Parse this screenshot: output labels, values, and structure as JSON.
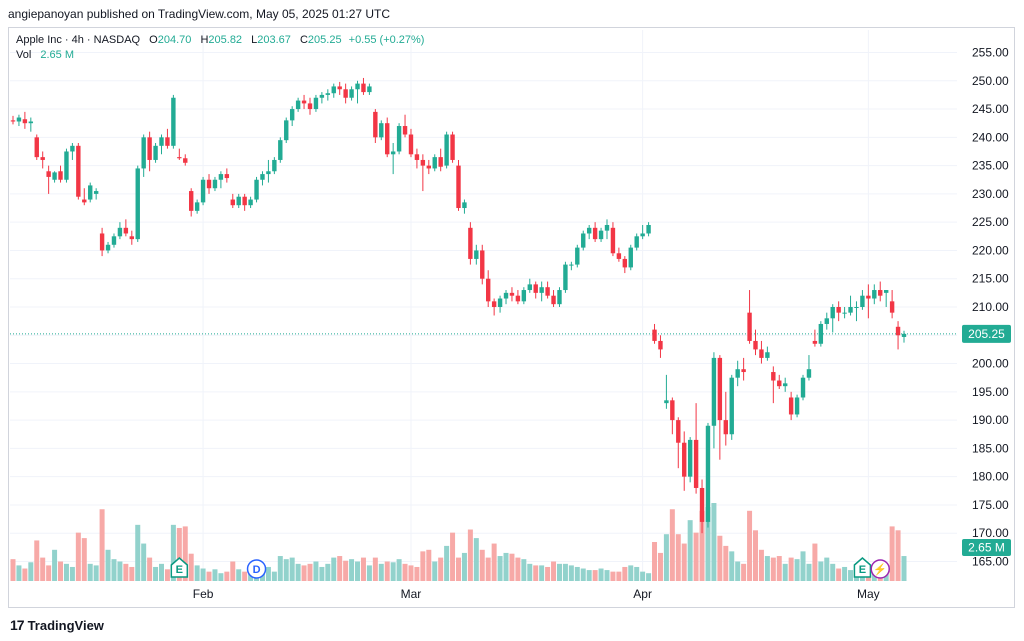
{
  "header": {
    "text": "angiepanoyan published on TradingView.com, May 05, 2025 01:27 UTC"
  },
  "legend": {
    "symbol": "Apple Inc · 4h · NASDAQ",
    "o_label": "O",
    "o_value": "204.70",
    "h_label": "H",
    "h_value": "205.82",
    "l_label": "L",
    "l_value": "203.67",
    "c_label": "C",
    "c_value": "205.25",
    "change": "+0.55 (+0.27%)",
    "vol_label": "Vol",
    "vol_value": "2.65 M"
  },
  "footer": {
    "brand": "TradingView",
    "logo": "17"
  },
  "colors": {
    "up": "#22ab94",
    "down": "#f23645",
    "up_vol": "#92d2cc",
    "down_vol": "#f7a9a7",
    "grid": "#f0f3fa",
    "price_line": "#22ab94"
  },
  "chart_data": {
    "type": "candlestick",
    "title": "Apple Inc · 4h · NASDAQ",
    "xlabel": "",
    "ylabel": "",
    "ylim": [
      163,
      258
    ],
    "y_ticks": [
      "255.00",
      "250.00",
      "245.00",
      "240.00",
      "235.00",
      "230.00",
      "225.00",
      "220.00",
      "215.00",
      "210.00",
      "205.00",
      "200.00",
      "195.00",
      "190.00",
      "185.00",
      "180.00",
      "175.00",
      "170.00",
      "165.00"
    ],
    "x_ticks": [
      {
        "label": "Feb",
        "index": 32
      },
      {
        "label": "Mar",
        "index": 67
      },
      {
        "label": "Apr",
        "index": 106
      },
      {
        "label": "May",
        "index": 144
      }
    ],
    "last_price": 205.25,
    "last_price_label": "205.25",
    "last_volume_label": "2.65 M",
    "volume_scale_max": 100,
    "events": [
      {
        "label": "E",
        "kind": "earnings",
        "index": 28
      },
      {
        "label": "D",
        "kind": "dividend",
        "index": 41
      },
      {
        "label": "E",
        "kind": "earnings",
        "index": 143
      },
      {
        "label": "⚡",
        "kind": "split",
        "index": 146
      }
    ],
    "candles": [
      [
        243.0,
        243.8,
        242.3,
        242.8,
        28
      ],
      [
        242.8,
        244.0,
        242.0,
        243.5,
        20
      ],
      [
        243.2,
        244.5,
        241.5,
        242.5,
        16
      ],
      [
        242.5,
        243.5,
        241.0,
        242.8,
        24
      ],
      [
        240.0,
        240.5,
        236.0,
        236.5,
        52
      ],
      [
        236.5,
        237.5,
        234.5,
        236.0,
        30
      ],
      [
        234.0,
        235.0,
        230.0,
        233.0,
        20
      ],
      [
        232.5,
        234.0,
        232.0,
        233.8,
        40
      ],
      [
        234.0,
        235.0,
        232.0,
        232.5,
        25
      ],
      [
        232.5,
        238.0,
        232.0,
        237.5,
        22
      ],
      [
        237.5,
        239.0,
        236.0,
        238.5,
        18
      ],
      [
        238.5,
        239.0,
        229.0,
        229.5,
        62
      ],
      [
        229.0,
        231.0,
        228.0,
        228.5,
        55
      ],
      [
        229.0,
        232.0,
        228.5,
        231.5,
        22
      ],
      [
        230.0,
        231.0,
        229.0,
        230.5,
        20
      ],
      [
        223.0,
        224.0,
        219.0,
        220.0,
        92
      ],
      [
        220.0,
        221.5,
        219.5,
        221.0,
        40
      ],
      [
        221.0,
        223.0,
        220.5,
        222.5,
        28
      ],
      [
        222.5,
        225.0,
        222.0,
        224.0,
        25
      ],
      [
        224.0,
        225.5,
        222.5,
        223.0,
        22
      ],
      [
        222.5,
        223.5,
        221.0,
        222.0,
        18
      ],
      [
        222.0,
        235.0,
        221.5,
        234.5,
        72
      ],
      [
        234.5,
        240.5,
        233.0,
        240.0,
        48
      ],
      [
        240.0,
        241.0,
        234.0,
        236.0,
        30
      ],
      [
        236.0,
        239.0,
        235.5,
        238.5,
        18
      ],
      [
        238.5,
        240.5,
        237.0,
        240.0,
        22
      ],
      [
        240.0,
        241.5,
        238.0,
        238.5,
        15
      ],
      [
        238.5,
        247.5,
        238.0,
        247.0,
        72
      ],
      [
        236.5,
        238.0,
        236.0,
        236.3,
        68
      ],
      [
        236.3,
        237.0,
        235.0,
        235.5,
        70
      ],
      [
        230.5,
        231.0,
        226.0,
        227.0,
        35
      ],
      [
        227.0,
        229.0,
        226.5,
        228.5,
        20
      ],
      [
        228.5,
        233.0,
        228.0,
        232.5,
        16
      ],
      [
        232.5,
        233.5,
        230.0,
        231.0,
        12
      ],
      [
        231.0,
        233.0,
        230.5,
        232.5,
        15
      ],
      [
        232.5,
        234.0,
        231.0,
        233.5,
        10
      ],
      [
        233.5,
        234.5,
        232.0,
        232.8,
        12
      ],
      [
        229.0,
        230.0,
        227.5,
        228.0,
        25
      ],
      [
        228.0,
        230.0,
        227.5,
        229.5,
        15
      ],
      [
        229.5,
        230.0,
        227.0,
        228.0,
        12
      ],
      [
        228.0,
        229.5,
        227.5,
        229.0,
        10
      ],
      [
        229.0,
        233.0,
        228.5,
        232.5,
        25
      ],
      [
        232.5,
        234.0,
        231.5,
        233.5,
        20
      ],
      [
        233.5,
        236.0,
        232.0,
        234.0,
        18
      ],
      [
        234.0,
        236.5,
        233.5,
        236.0,
        12
      ],
      [
        236.0,
        240.0,
        235.5,
        239.5,
        32
      ],
      [
        239.5,
        243.5,
        239.0,
        243.0,
        28
      ],
      [
        243.0,
        245.5,
        242.0,
        245.0,
        30
      ],
      [
        245.0,
        247.0,
        244.5,
        246.5,
        22
      ],
      [
        246.5,
        247.5,
        245.0,
        246.0,
        20
      ],
      [
        246.0,
        247.0,
        244.0,
        245.0,
        22
      ],
      [
        245.0,
        247.5,
        244.5,
        247.0,
        25
      ],
      [
        247.0,
        248.0,
        246.0,
        247.5,
        18
      ],
      [
        247.5,
        248.5,
        246.5,
        247.8,
        22
      ],
      [
        247.8,
        249.5,
        247.0,
        249.0,
        30
      ],
      [
        249.0,
        249.8,
        247.5,
        248.5,
        32
      ],
      [
        248.5,
        249.5,
        246.0,
        247.0,
        26
      ],
      [
        247.0,
        249.0,
        246.5,
        248.5,
        28
      ],
      [
        248.5,
        250.0,
        246.0,
        249.5,
        25
      ],
      [
        249.5,
        250.5,
        247.5,
        248.0,
        30
      ],
      [
        248.0,
        249.5,
        247.5,
        249.0,
        20
      ],
      [
        244.5,
        245.0,
        239.0,
        240.0,
        30
      ],
      [
        240.0,
        243.0,
        239.5,
        242.5,
        22
      ],
      [
        242.5,
        243.5,
        236.5,
        237.0,
        25
      ],
      [
        237.0,
        239.0,
        233.5,
        237.5,
        24
      ],
      [
        237.5,
        242.5,
        237.0,
        242.0,
        28
      ],
      [
        242.0,
        244.0,
        240.0,
        240.5,
        22
      ],
      [
        240.5,
        241.5,
        236.5,
        237.0,
        20
      ],
      [
        237.0,
        238.0,
        234.5,
        236.0,
        18
      ],
      [
        236.0,
        237.0,
        230.5,
        235.0,
        38
      ],
      [
        235.0,
        236.0,
        233.5,
        234.5,
        40
      ],
      [
        234.5,
        237.0,
        234.0,
        236.5,
        25
      ],
      [
        236.5,
        238.0,
        234.0,
        234.8,
        30
      ],
      [
        235.0,
        241.0,
        234.5,
        240.5,
        45
      ],
      [
        240.5,
        241.0,
        235.5,
        236.0,
        62
      ],
      [
        235.0,
        236.0,
        227.0,
        227.5,
        30
      ],
      [
        227.5,
        229.0,
        226.5,
        228.5,
        36
      ],
      [
        224.0,
        225.0,
        217.5,
        218.5,
        66
      ],
      [
        218.5,
        221.0,
        217.5,
        220.0,
        55
      ],
      [
        220.0,
        221.0,
        214.0,
        215.0,
        40
      ],
      [
        215.0,
        216.5,
        210.0,
        211.0,
        30
      ],
      [
        211.0,
        211.5,
        208.5,
        210.0,
        48
      ],
      [
        210.0,
        212.0,
        209.0,
        211.5,
        32
      ],
      [
        211.5,
        213.0,
        210.5,
        212.5,
        36
      ],
      [
        212.5,
        213.5,
        211.0,
        212.0,
        35
      ],
      [
        212.0,
        213.0,
        210.5,
        211.0,
        30
      ],
      [
        211.0,
        213.5,
        210.5,
        213.0,
        28
      ],
      [
        213.0,
        215.0,
        212.5,
        214.0,
        22
      ],
      [
        214.0,
        214.5,
        211.5,
        212.5,
        20
      ],
      [
        212.5,
        214.5,
        211.0,
        213.5,
        20
      ],
      [
        213.5,
        214.5,
        211.5,
        212.0,
        18
      ],
      [
        212.0,
        213.0,
        210.0,
        210.5,
        25
      ],
      [
        210.5,
        213.5,
        210.0,
        213.0,
        22
      ],
      [
        213.0,
        218.0,
        212.5,
        217.5,
        22
      ],
      [
        217.5,
        218.0,
        216.5,
        217.5,
        20
      ],
      [
        217.5,
        221.0,
        217.0,
        220.5,
        18
      ],
      [
        220.5,
        223.5,
        220.0,
        223.0,
        16
      ],
      [
        223.0,
        224.5,
        222.0,
        224.0,
        14
      ],
      [
        224.0,
        225.0,
        221.5,
        222.0,
        14
      ],
      [
        222.0,
        224.0,
        221.5,
        223.5,
        16
      ],
      [
        223.5,
        225.5,
        222.0,
        224.5,
        14
      ],
      [
        224.0,
        225.0,
        219.0,
        219.5,
        12
      ],
      [
        219.5,
        220.5,
        218.0,
        218.5,
        12
      ],
      [
        218.5,
        219.0,
        216.0,
        217.0,
        18
      ],
      [
        217.0,
        221.0,
        216.5,
        220.5,
        20
      ],
      [
        220.5,
        223.0,
        220.0,
        222.5,
        18
      ],
      [
        222.5,
        224.5,
        222.0,
        223.0,
        12
      ],
      [
        223.0,
        225.0,
        222.5,
        224.5,
        10
      ],
      [
        206.0,
        207.0,
        203.5,
        204.0,
        50
      ],
      [
        204.0,
        205.0,
        201.0,
        202.5,
        36
      ],
      [
        193.0,
        198.0,
        192.0,
        193.5,
        60
      ],
      [
        193.5,
        194.0,
        187.5,
        190.0,
        92
      ],
      [
        190.0,
        190.5,
        181.5,
        186.0,
        60
      ],
      [
        186.0,
        188.0,
        177.5,
        180.0,
        48
      ],
      [
        180.0,
        187.0,
        179.0,
        186.5,
        78
      ],
      [
        186.5,
        193.0,
        177.0,
        178.0,
        62
      ],
      [
        178.0,
        179.5,
        170.0,
        172.0,
        90
      ],
      [
        172.0,
        189.5,
        171.0,
        189.0,
        95
      ],
      [
        189.0,
        202.0,
        185.0,
        201.0,
        100
      ],
      [
        201.0,
        201.5,
        183.0,
        190.0,
        58
      ],
      [
        190.0,
        195.0,
        185.5,
        187.5,
        45
      ],
      [
        187.5,
        198.0,
        186.5,
        197.5,
        38
      ],
      [
        197.5,
        200.5,
        196.0,
        199.0,
        25
      ],
      [
        199.0,
        201.0,
        197.0,
        198.5,
        22
      ],
      [
        209.0,
        213.0,
        203.5,
        204.0,
        90
      ],
      [
        204.0,
        206.0,
        201.5,
        202.5,
        65
      ],
      [
        202.5,
        204.0,
        200.0,
        201.0,
        40
      ],
      [
        201.0,
        203.0,
        200.5,
        202.0,
        32
      ],
      [
        198.5,
        199.5,
        193.0,
        197.0,
        30
      ],
      [
        197.0,
        198.0,
        195.5,
        196.0,
        32
      ],
      [
        196.0,
        197.5,
        195.0,
        196.5,
        22
      ],
      [
        194.0,
        195.0,
        190.0,
        191.0,
        30
      ],
      [
        191.0,
        194.5,
        190.5,
        194.0,
        28
      ],
      [
        194.0,
        198.0,
        193.5,
        197.5,
        38
      ],
      [
        197.5,
        201.5,
        197.0,
        199.0,
        22
      ],
      [
        204.0,
        206.0,
        203.0,
        203.5,
        48
      ],
      [
        203.5,
        207.5,
        203.0,
        207.0,
        25
      ],
      [
        207.0,
        209.0,
        206.0,
        208.0,
        30
      ],
      [
        208.0,
        210.5,
        205.5,
        210.0,
        22
      ],
      [
        210.0,
        211.0,
        207.5,
        209.0,
        16
      ],
      [
        209.0,
        210.0,
        208.0,
        209.0,
        18
      ],
      [
        209.0,
        212.0,
        208.5,
        210.0,
        14
      ],
      [
        210.0,
        211.0,
        207.5,
        210.0,
        12
      ],
      [
        210.0,
        213.0,
        209.5,
        212.0,
        15
      ],
      [
        212.0,
        214.0,
        208.0,
        211.5,
        20
      ],
      [
        211.5,
        214.0,
        210.5,
        213.0,
        14
      ],
      [
        213.0,
        214.5,
        211.0,
        212.0,
        16
      ],
      [
        212.5,
        213.0,
        210.0,
        213.0,
        18
      ],
      [
        211.0,
        213.0,
        208.0,
        209.0,
        70
      ],
      [
        206.5,
        207.5,
        202.5,
        205.0,
        65
      ],
      [
        204.7,
        205.8,
        203.7,
        205.25,
        32
      ]
    ]
  }
}
